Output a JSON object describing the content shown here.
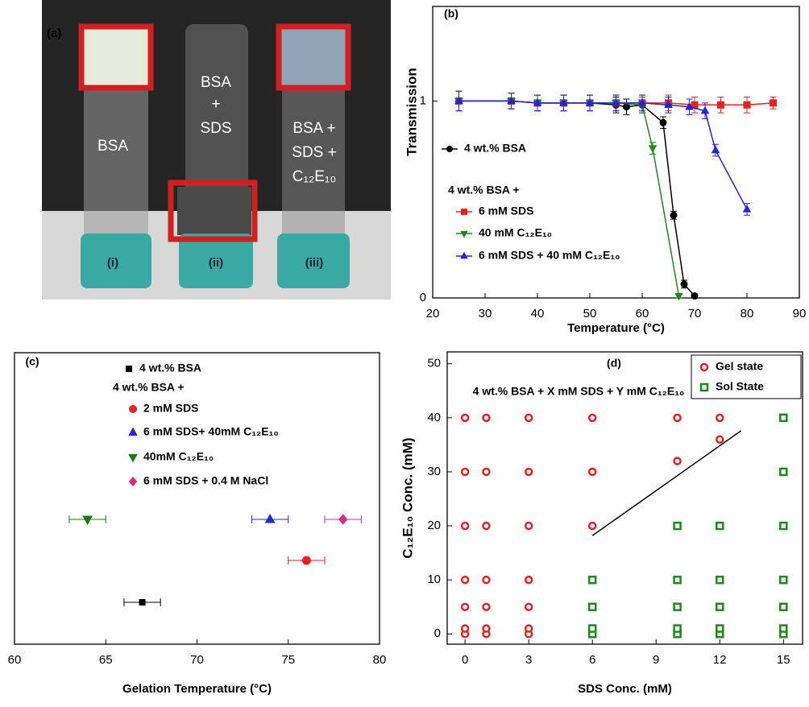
{
  "panel_a": {
    "label": "(a)",
    "vials": [
      {
        "contents": [
          "BSA"
        ],
        "number": "(i)"
      },
      {
        "contents": [
          "BSA",
          "+",
          "SDS"
        ],
        "number": "(ii)"
      },
      {
        "contents": [
          "BSA +",
          "SDS +",
          "C₁₂E₁₀"
        ],
        "number": "(iii)"
      }
    ]
  },
  "chart_data": [
    {
      "type": "line",
      "label": "(b)",
      "xlabel": "Temperature (°C)",
      "ylabel": "Transmission",
      "xlim": [
        20,
        90
      ],
      "xticks": [
        20,
        30,
        40,
        50,
        60,
        70,
        80,
        90
      ],
      "ylim": [
        0,
        1.48
      ],
      "yticks": [
        0,
        1
      ],
      "annotation": "4 wt.% BSA +",
      "series": [
        {
          "name": "4 wt.% BSA",
          "color": "#000000",
          "marker": "circle",
          "x": [
            25,
            35,
            40,
            45,
            50,
            55,
            57,
            60,
            64,
            66,
            68,
            70
          ],
          "values": [
            1,
            1,
            0.99,
            0.99,
            0.99,
            0.98,
            0.97,
            0.98,
            0.89,
            0.42,
            0.07,
            0.01
          ],
          "errors": [
            0.05,
            0.04,
            0.04,
            0.04,
            0.04,
            0.04,
            0.04,
            0.04,
            0.03,
            0.02,
            0.02,
            0.01
          ]
        },
        {
          "name": "6 mM SDS",
          "color": "#e8211f",
          "marker": "square",
          "x": [
            25,
            35,
            40,
            45,
            50,
            55,
            60,
            65,
            70,
            75,
            80,
            85
          ],
          "values": [
            1,
            1,
            0.99,
            0.99,
            0.99,
            0.99,
            0.99,
            0.99,
            0.98,
            0.98,
            0.98,
            0.99
          ],
          "errors": [
            0.05,
            0.04,
            0.04,
            0.04,
            0.04,
            0.04,
            0.04,
            0.04,
            0.04,
            0.04,
            0.04,
            0.03
          ]
        },
        {
          "name": "40 mM C₁₂E₁₀",
          "color": "#1a8a1a",
          "marker": "tri-down",
          "x": [
            25,
            35,
            40,
            45,
            50,
            55,
            60,
            62,
            67
          ],
          "values": [
            1,
            1,
            0.99,
            0.99,
            0.99,
            0.99,
            0.98,
            0.76,
            0.01
          ],
          "errors": [
            0.05,
            0.04,
            0.04,
            0.04,
            0.04,
            0.04,
            0.04,
            0.03,
            0.01
          ]
        },
        {
          "name": "6 mM SDS + 40 mM C₁₂E₁₀",
          "color": "#2323e0",
          "marker": "tri-up",
          "x": [
            25,
            35,
            40,
            45,
            50,
            55,
            60,
            65,
            69,
            72,
            74,
            80
          ],
          "values": [
            1,
            1,
            0.99,
            0.99,
            0.99,
            0.99,
            0.99,
            0.98,
            0.97,
            0.95,
            0.75,
            0.45
          ],
          "errors": [
            0.05,
            0.04,
            0.04,
            0.04,
            0.04,
            0.04,
            0.04,
            0.04,
            0.04,
            0.04,
            0.03,
            0.03
          ]
        }
      ]
    },
    {
      "type": "dot",
      "label": "(c)",
      "xlabel": "Gelation Temperature (°C)",
      "xlim": [
        60,
        80
      ],
      "xticks": [
        60,
        65,
        70,
        75,
        80
      ],
      "annotation": "4 wt.% BSA +",
      "series": [
        {
          "name": "4 wt.% BSA",
          "color": "#000000",
          "marker": "square",
          "values": [
            67
          ],
          "errors": [
            1
          ]
        },
        {
          "name": "2 mM SDS",
          "color": "#e8211f",
          "marker": "circle",
          "values": [
            76
          ],
          "errors": [
            1
          ]
        },
        {
          "name": "6 mM SDS+ 40mM C₁₂E₁₀",
          "color": "#2323e0",
          "marker": "tri-up",
          "values": [
            74
          ],
          "errors": [
            1
          ]
        },
        {
          "name": "40mM C₁₂E₁₀",
          "color": "#1a7a1a",
          "marker": "tri-down",
          "values": [
            64
          ],
          "errors": [
            1
          ]
        },
        {
          "name": "6 mM SDS + 0.4 M NaCl",
          "color": "#e0288a",
          "marker": "diamond",
          "values": [
            78
          ],
          "errors": [
            1
          ]
        }
      ]
    },
    {
      "type": "scatter",
      "label": "(d)",
      "annotation": "4 wt.% BSA + X mM SDS + Y mM C₁₂E₁₀",
      "xlabel": "SDS Conc. (mM)",
      "ylabel": "C₁₂E₁₀ Conc. (mM)",
      "xlim": [
        -0.84,
        15.9
      ],
      "xticks": [
        0,
        3,
        6,
        9,
        12,
        15
      ],
      "ylim": [
        -1.9,
        52.2
      ],
      "yticks": [
        0,
        10,
        20,
        30,
        40,
        50
      ],
      "series": [
        {
          "name": "Gel state",
          "color": "#e8211f",
          "marker": "circle",
          "x": [
            0,
            0,
            0,
            0,
            0,
            0,
            0,
            1,
            1,
            1,
            1,
            1,
            1,
            1,
            3,
            3,
            3,
            3,
            3,
            3,
            3,
            6,
            6,
            6,
            10,
            10,
            12,
            12
          ],
          "values": [
            0,
            1,
            5,
            10,
            20,
            30,
            40,
            0,
            1,
            5,
            10,
            20,
            30,
            40,
            0,
            1,
            5,
            10,
            20,
            30,
            40,
            20,
            30,
            40,
            32,
            40,
            36,
            40
          ]
        },
        {
          "name": "Sol State",
          "color": "#1a8a1a",
          "marker": "square",
          "x": [
            6,
            6,
            6,
            6,
            10,
            10,
            10,
            10,
            10,
            12,
            12,
            12,
            12,
            12,
            15,
            15,
            15,
            15,
            15,
            15,
            15
          ],
          "values": [
            0,
            1,
            5,
            10,
            0,
            1,
            5,
            10,
            20,
            0,
            1,
            5,
            10,
            20,
            0,
            1,
            5,
            10,
            20,
            30,
            40
          ]
        }
      ],
      "boundary_line": {
        "x": [
          6,
          13
        ],
        "y": [
          18.2,
          37.6
        ]
      }
    }
  ]
}
